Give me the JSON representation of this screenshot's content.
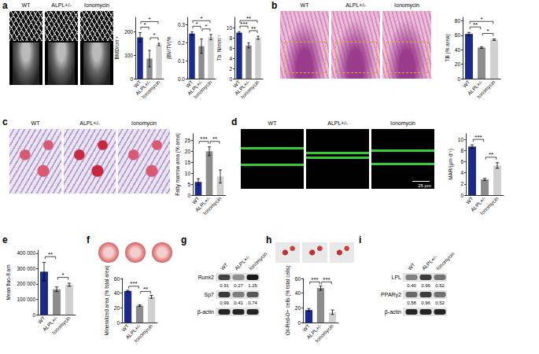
{
  "chart_data": [
    {
      "type": "bar",
      "ylabel": "BMD/cm⁻³",
      "categories": [
        "WT",
        "ALPL+/-",
        "Ionomycin"
      ],
      "values": [
        175,
        85,
        145
      ],
      "errors": [
        20,
        35,
        5
      ],
      "colors": [
        "#1b2a8a",
        "#8c8c8c",
        "#d0d0d0"
      ],
      "ylim": [
        0,
        260
      ],
      "yticks": [
        0,
        100,
        200
      ],
      "grid": false,
      "significance": [
        {
          "from": "WT",
          "to": "ALPL+/-",
          "label": "*"
        },
        {
          "from": "ALPL+/-",
          "to": "Ionomycin",
          "label": "*"
        },
        {
          "from": "WT",
          "to": "Ionomycin",
          "label": "*"
        }
      ]
    },
    {
      "type": "bar",
      "ylabel": "(BV/TV)%",
      "categories": [
        "WT",
        "ALPL+/-",
        "Ionomycin"
      ],
      "values": [
        0.25,
        0.18,
        0.23
      ],
      "errors": [
        0.01,
        0.04,
        0.015
      ],
      "colors": [
        "#1b2a8a",
        "#8c8c8c",
        "#d0d0d0"
      ],
      "ylim": [
        0,
        0.34
      ],
      "yticks": [
        {
          "value": 0,
          "label": "0.0"
        },
        0.1,
        0.2,
        0.3
      ],
      "grid": false,
      "significance": [
        {
          "from": "WT",
          "to": "ALPL+/-",
          "label": "*"
        },
        {
          "from": "ALPL+/-",
          "to": "Ionomycin",
          "label": "*"
        },
        {
          "from": "WT",
          "to": "Ionomycin",
          "label": "*"
        }
      ]
    },
    {
      "type": "bar",
      "ylabel": "Tb. N/mm⁻¹",
      "categories": [
        "WT",
        "ALPL+/-",
        "Ionomycin"
      ],
      "values": [
        9,
        6.5,
        8
      ],
      "errors": [
        0.2,
        0.5,
        0.3
      ],
      "colors": [
        "#1b2a8a",
        "#8c8c8c",
        "#d0d0d0"
      ],
      "ylim": [
        0,
        12
      ],
      "yticks": [
        0,
        2,
        4,
        6,
        8,
        10
      ],
      "grid": false,
      "significance": [
        {
          "from": "WT",
          "to": "ALPL+/-",
          "label": "***"
        },
        {
          "from": "ALPL+/-",
          "to": "Ionomycin",
          "label": "**"
        },
        {
          "from": "WT",
          "to": "Ionomycin",
          "label": "**"
        }
      ]
    },
    {
      "type": "bar",
      "ylabel": "TB (% area)",
      "categories": [
        "WT",
        "ALPL+/-",
        "Ionomycin"
      ],
      "values": [
        62,
        43,
        54
      ],
      "errors": [
        2,
        1,
        1
      ],
      "colors": [
        "#1b2a8a",
        "#8c8c8c",
        "#d0d0d0"
      ],
      "ylim": [
        0,
        85
      ],
      "yticks": [
        0,
        20,
        40,
        60,
        80
      ],
      "grid": false,
      "significance": [
        {
          "from": "WT",
          "to": "ALPL+/-",
          "label": "**"
        },
        {
          "from": "ALPL+/-",
          "to": "Ionomycin",
          "label": "*"
        },
        {
          "from": "WT",
          "to": "Ionomycin",
          "label": "*"
        }
      ]
    },
    {
      "type": "bar",
      "ylabel": "Fatty marrow area (% area)",
      "categories": [
        "WT",
        "ALPL+/-",
        "Ionomycin"
      ],
      "values": [
        6,
        20,
        8.5
      ],
      "errors": [
        1.5,
        2,
        3
      ],
      "colors": [
        "#1b2a8a",
        "#8c8c8c",
        "#d0d0d0"
      ],
      "ylim": [
        0,
        28
      ],
      "yticks": [
        0,
        5,
        10,
        15,
        20,
        25
      ],
      "grid": false,
      "significance": [
        {
          "from": "WT",
          "to": "ALPL+/-",
          "label": "***"
        },
        {
          "from": "ALPL+/-",
          "to": "Ionomycin",
          "label": "**"
        }
      ]
    },
    {
      "type": "bar",
      "ylabel": "MAR/(μm·d⁻¹)",
      "categories": [
        "WT",
        "ALPL+/-",
        "Ionomycin"
      ],
      "values": [
        8.7,
        2.8,
        5.3
      ],
      "errors": [
        0.3,
        0.2,
        0.5
      ],
      "colors": [
        "#1b2a8a",
        "#8c8c8c",
        "#d0d0d0"
      ],
      "ylim": [
        0,
        11
      ],
      "yticks": [
        0,
        2,
        4,
        6,
        8,
        10
      ],
      "grid": false,
      "significance": [
        {
          "from": "WT",
          "to": "ALPL+/-",
          "label": "***"
        },
        {
          "from": "ALPL+/-",
          "to": "Ionomycin",
          "label": "**"
        }
      ]
    },
    {
      "type": "bar",
      "ylabel": "Mean fluo-8 am",
      "categories": [
        "WT",
        "ALPL+/-",
        "Ionomycin"
      ],
      "values": [
        280000,
        165000,
        195000
      ],
      "errors": [
        60000,
        15000,
        10000
      ],
      "colors": [
        "#1b2a8a",
        "#8c8c8c",
        "#d0d0d0"
      ],
      "ylim": [
        0,
        420000
      ],
      "yticks": [
        0,
        {
          "value": 100000,
          "label": "100 000"
        },
        {
          "value": 200000,
          "label": "200 000"
        },
        {
          "value": 300000,
          "label": "300 000"
        },
        {
          "value": 400000,
          "label": "400 000"
        }
      ],
      "grid": false,
      "significance": [
        {
          "from": "WT",
          "to": "ALPL+/-",
          "label": "**"
        },
        {
          "from": "ALPL+/-",
          "to": "Ionomycin",
          "label": "*"
        }
      ]
    },
    {
      "type": "bar",
      "ylabel": "Mineralized area (% total area)",
      "categories": [
        "WT",
        "ALPL+/-",
        "Ionomycin"
      ],
      "values": [
        43,
        23,
        35
      ],
      "errors": [
        1,
        1,
        2
      ],
      "colors": [
        "#1b2a8a",
        "#8c8c8c",
        "#d0d0d0"
      ],
      "ylim": [
        0,
        60
      ],
      "yticks": [
        0,
        20,
        40,
        60
      ],
      "grid": false,
      "significance": [
        {
          "from": "WT",
          "to": "ALPL+/-",
          "label": "***"
        },
        {
          "from": "ALPL+/-",
          "to": "Ionomycin",
          "label": "**"
        }
      ]
    },
    {
      "type": "bar",
      "ylabel": "Oil-Red-O+ cells (% total cells)",
      "categories": [
        "WT",
        "ALPL+/-",
        "Ionomycin"
      ],
      "values": [
        17,
        47,
        14
      ],
      "errors": [
        2,
        3,
        3
      ],
      "colors": [
        "#1b2a8a",
        "#8c8c8c",
        "#d0d0d0"
      ],
      "ylim": [
        0,
        60
      ],
      "yticks": [
        0,
        20,
        40,
        60
      ],
      "grid": false,
      "significance": [
        {
          "from": "WT",
          "to": "ALPL+/-",
          "label": "***"
        },
        {
          "from": "ALPL+/-",
          "to": "Ionomycin",
          "label": "***"
        }
      ]
    }
  ],
  "figure": {
    "panel_letters": [
      "a",
      "b",
      "c",
      "d",
      "e",
      "f",
      "g",
      "h",
      "i"
    ],
    "image_panels": [
      {
        "letter": "a",
        "labels": [
          "WT",
          "ALPL+/-",
          "Ionomycin"
        ]
      },
      {
        "letter": "b",
        "labels": [
          "WT",
          "ALPL+/-",
          "Ionomycin"
        ]
      },
      {
        "letter": "c",
        "labels": [
          "WT",
          "ALPL+/-",
          "Ionomycin"
        ]
      },
      {
        "letter": "d",
        "labels": [
          "WT",
          "ALPL+/-",
          "Ionomycin"
        ],
        "scale_bar": "25 μm"
      },
      {
        "letter": "f"
      },
      {
        "letter": "h"
      }
    ],
    "blots": [
      {
        "letter": "g",
        "columns": [
          "WT",
          "ALPL+/-",
          "Ionomycin"
        ],
        "rows": [
          {
            "name": "Runx2",
            "values": [
              "0.91",
              "0.27",
              "1.25"
            ]
          },
          {
            "name": "Sp7",
            "values": [
              "0.99",
              "0.41",
              "0.74"
            ]
          },
          {
            "name": "β-actin"
          }
        ]
      },
      {
        "letter": "i",
        "columns": [
          "WT",
          "ALPL+/-",
          "Ionomycin"
        ],
        "rows": [
          {
            "name": "LPL",
            "values": [
              "0.40",
              "0.96",
              "0.52"
            ]
          },
          {
            "name": "PPARγ2",
            "values": [
              "0.58",
              "0.96",
              "0.52"
            ]
          },
          {
            "name": "β-actin"
          }
        ]
      }
    ]
  }
}
